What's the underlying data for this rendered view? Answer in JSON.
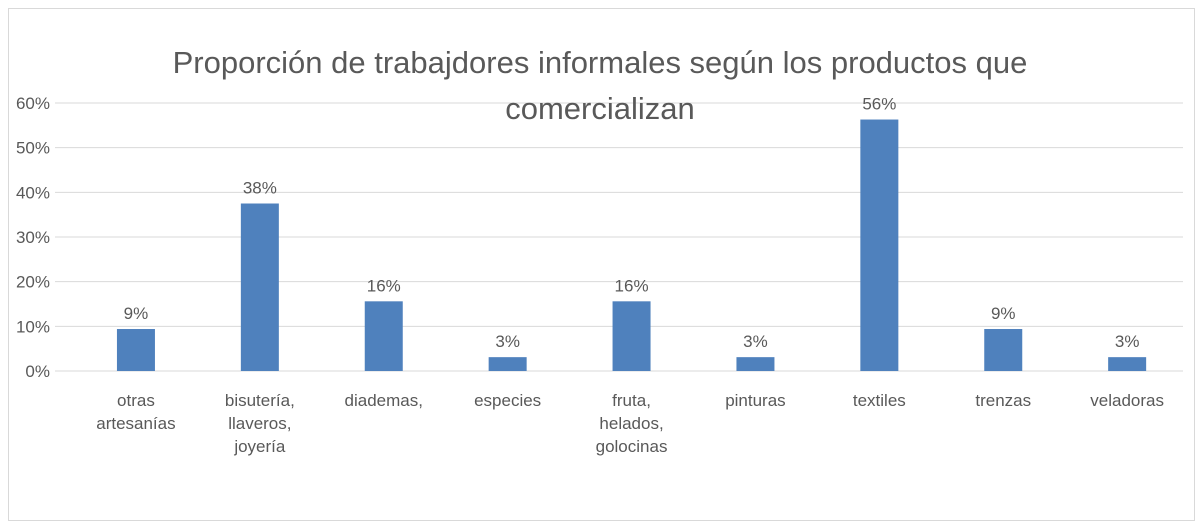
{
  "chart_data": {
    "type": "bar",
    "title": "Proporción de trabajdores informales según los productos que comercializan",
    "categories": [
      "otras artesanías",
      "bisutería, llaveros, joyería",
      "diademas,",
      "especies",
      "fruta, helados, golocinas",
      "pinturas",
      "textiles",
      "trenzas",
      "veladoras"
    ],
    "values": [
      9.4,
      37.5,
      15.6,
      3.1,
      15.6,
      3.1,
      56.3,
      9.4,
      3.1
    ],
    "value_labels": [
      "9%",
      "38%",
      "16%",
      "3%",
      "16%",
      "3%",
      "56%",
      "9%",
      "3%"
    ],
    "color": "#4f81bd",
    "ylim": [
      0,
      60
    ],
    "yticks": [
      {
        "value": 0,
        "label": "0%"
      },
      {
        "value": 10,
        "label": "10%"
      },
      {
        "value": 20,
        "label": "20%"
      },
      {
        "value": 30,
        "label": "30%"
      },
      {
        "value": 40,
        "label": "40%"
      },
      {
        "value": 50,
        "label": "50%"
      },
      {
        "value": 60,
        "label": "60%"
      }
    ],
    "grid": true
  }
}
